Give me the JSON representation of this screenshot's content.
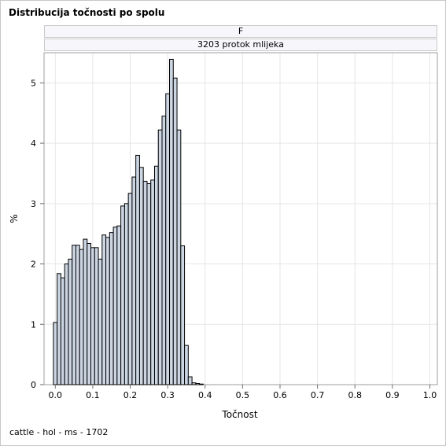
{
  "page": {
    "title": "Distribucija točnosti po spolu",
    "footnote": "cattle - hol - ms - 1702",
    "panel_header_1": "F",
    "panel_header_2": "3203 protok mlijeka"
  },
  "colors": {
    "bar_fill": "#ccd6e3",
    "bar_stroke": "#000000",
    "grid": "#e6e6e6",
    "axis": "#6e6e6e"
  },
  "chart_data": {
    "type": "bar",
    "title": "Distribucija točnosti po spolu",
    "xlabel": "Točnost",
    "ylabel": "%",
    "xlim": [
      -0.03,
      1.02
    ],
    "ylim": [
      0,
      5.5
    ],
    "grid": true,
    "bin_width": 0.01,
    "x_ticks": [
      {
        "value": 0.0,
        "label": "0.0"
      },
      {
        "value": 0.1,
        "label": "0.1"
      },
      {
        "value": 0.2,
        "label": "0.2"
      },
      {
        "value": 0.3,
        "label": "0.3"
      },
      {
        "value": 0.4,
        "label": "0.4"
      },
      {
        "value": 0.5,
        "label": "0.5"
      },
      {
        "value": 0.6,
        "label": "0.6"
      },
      {
        "value": 0.7,
        "label": "0.7"
      },
      {
        "value": 0.8,
        "label": "0.8"
      },
      {
        "value": 0.9,
        "label": "0.9"
      },
      {
        "value": 1.0,
        "label": "1.0"
      }
    ],
    "y_ticks": [
      {
        "value": 0,
        "label": "0"
      },
      {
        "value": 1,
        "label": "1"
      },
      {
        "value": 2,
        "label": "2"
      },
      {
        "value": 3,
        "label": "3"
      },
      {
        "value": 4,
        "label": "4"
      },
      {
        "value": 5,
        "label": "5"
      }
    ],
    "x": [
      0.0,
      0.01,
      0.02,
      0.03,
      0.04,
      0.05,
      0.06,
      0.07,
      0.08,
      0.09,
      0.1,
      0.11,
      0.12,
      0.13,
      0.14,
      0.15,
      0.16,
      0.17,
      0.18,
      0.19,
      0.2,
      0.21,
      0.22,
      0.23,
      0.24,
      0.25,
      0.26,
      0.27,
      0.28,
      0.29,
      0.3,
      0.31,
      0.32,
      0.33,
      0.34,
      0.35,
      0.36,
      0.37,
      0.38,
      0.39,
      0.4,
      0.41,
      0.42,
      0.43,
      0.44,
      0.45,
      0.46,
      0.47,
      0.48,
      0.49,
      0.5,
      0.51,
      0.52,
      0.53,
      0.54,
      0.55
    ],
    "values": [
      1.03,
      1.84,
      1.77,
      2.0,
      2.08,
      2.31,
      2.31,
      2.24,
      2.41,
      2.34,
      2.27,
      2.27,
      2.08,
      2.48,
      2.44,
      2.52,
      2.61,
      2.63,
      2.96,
      3.0,
      3.17,
      3.44,
      3.8,
      3.6,
      3.37,
      3.33,
      3.39,
      3.62,
      4.22,
      4.45,
      4.82,
      5.39,
      5.08,
      4.22,
      2.3,
      0.65,
      0.13,
      0.03,
      0.02,
      0.01,
      0.0,
      0.0,
      0.0,
      0.0,
      0.0,
      0.0,
      0.0,
      0.0,
      0.0,
      0.0,
      0.0,
      0.0,
      0.0,
      0.0,
      0.0,
      0.0
    ]
  }
}
